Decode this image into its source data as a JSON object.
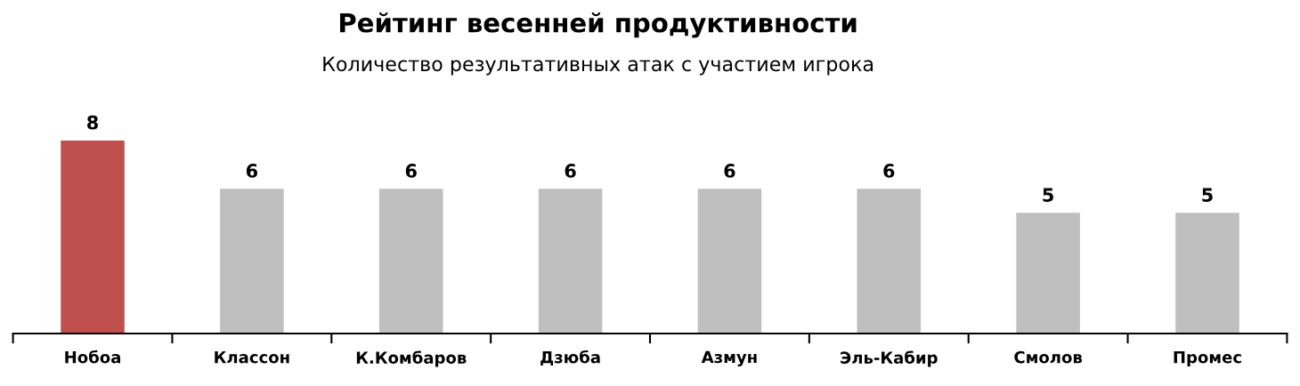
{
  "chart_data": {
    "type": "bar",
    "title": "Рейтинг весенней продуктивности",
    "subtitle": "Количество результативных атак с участием игрока",
    "categories": [
      "Нобоа",
      "Классон",
      "К.Комбаров",
      "Дзюба",
      "Азмун",
      "Эль-Кабир",
      "Смолов",
      "Промес"
    ],
    "values": [
      8,
      6,
      6,
      6,
      6,
      6,
      5,
      5
    ],
    "colors": [
      "#c0504d",
      "#bfbfbf",
      "#bfbfbf",
      "#bfbfbf",
      "#bfbfbf",
      "#bfbfbf",
      "#bfbfbf",
      "#bfbfbf"
    ],
    "data_labels": true,
    "tick_labels": "x",
    "grid": false
  }
}
